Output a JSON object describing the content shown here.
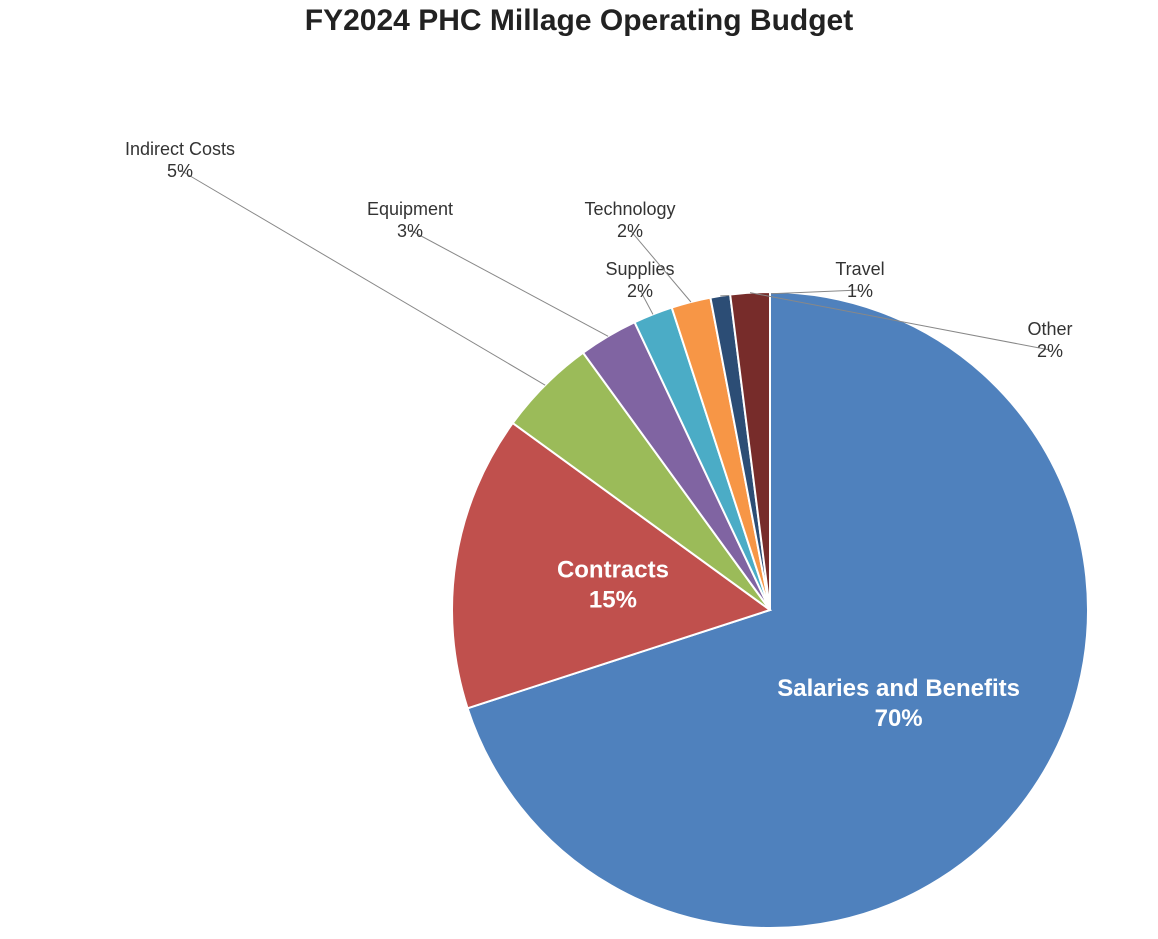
{
  "chart_data": {
    "type": "pie",
    "title": "FY2024 PHC Millage Operating Budget",
    "categories": [
      "Salaries and Benefits",
      "Contracts",
      "Indirect Costs",
      "Equipment",
      "Supplies",
      "Technology",
      "Travel",
      "Other"
    ],
    "values": [
      70,
      15,
      5,
      3,
      2,
      2,
      1,
      2
    ],
    "value_labels": [
      "70%",
      "15%",
      "5%",
      "3%",
      "2%",
      "2%",
      "1%",
      "2%"
    ],
    "colors": [
      "#4f81bd",
      "#c0504d",
      "#9bbb59",
      "#8064a2",
      "#4bacc6",
      "#f79646",
      "#2c4d75",
      "#772c2a"
    ]
  }
}
